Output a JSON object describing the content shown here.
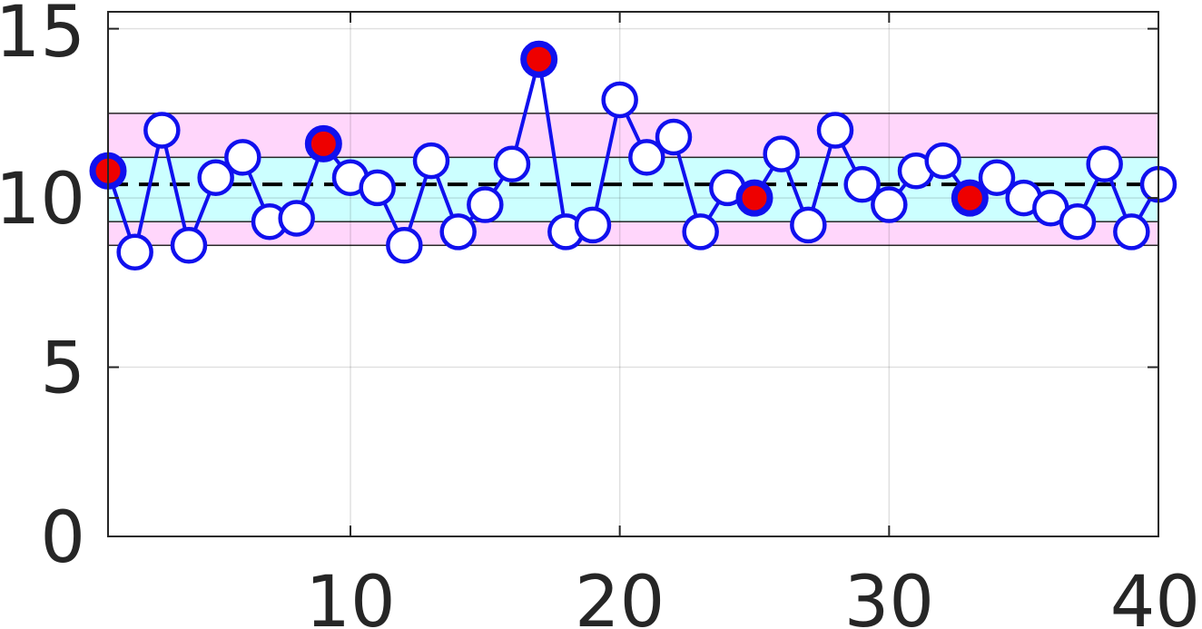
{
  "chart_data": {
    "type": "line",
    "title": "",
    "xlabel": "",
    "ylabel": "",
    "xlim": [
      1,
      40
    ],
    "ylim": [
      0,
      15.5
    ],
    "grid": true,
    "x_ticks": [
      10,
      20,
      30,
      40
    ],
    "y_ticks": [
      0,
      5,
      10,
      15
    ],
    "x_tick_labels": [
      "10",
      "20",
      "30",
      "40"
    ],
    "y_tick_labels": [
      "0",
      "5",
      "10",
      "15"
    ],
    "center_line": 10.4,
    "bands": [
      {
        "name": "outer",
        "range": [
          8.6,
          12.5
        ],
        "color": "#ffd6fb"
      },
      {
        "name": "inner",
        "range": [
          9.3,
          11.2
        ],
        "color": "#ccffff"
      }
    ],
    "series": [
      {
        "color": "#1010ee",
        "x": [
          1,
          2,
          3,
          4,
          5,
          6,
          7,
          8,
          9,
          10,
          11,
          12,
          13,
          14,
          15,
          16,
          17,
          18,
          19,
          20,
          21,
          22,
          23,
          24,
          25,
          26,
          27,
          28,
          29,
          30,
          31,
          32,
          33,
          34,
          35,
          36,
          37,
          38,
          39,
          40
        ],
        "values": [
          10.8,
          8.4,
          12.0,
          8.6,
          10.6,
          11.2,
          9.3,
          9.4,
          11.6,
          10.6,
          10.3,
          8.6,
          11.1,
          9.0,
          9.8,
          11.0,
          14.1,
          9.0,
          9.2,
          12.9,
          11.2,
          11.8,
          9.0,
          10.3,
          10.0,
          11.3,
          9.2,
          12.0,
          10.4,
          9.8,
          10.8,
          11.1,
          10.0,
          10.6,
          10.0,
          9.7,
          9.3,
          11.0,
          9.0,
          10.4
        ],
        "highlighted_x": [
          1,
          9,
          17,
          25,
          33
        ],
        "highlight_color": "#ee0000"
      }
    ]
  }
}
